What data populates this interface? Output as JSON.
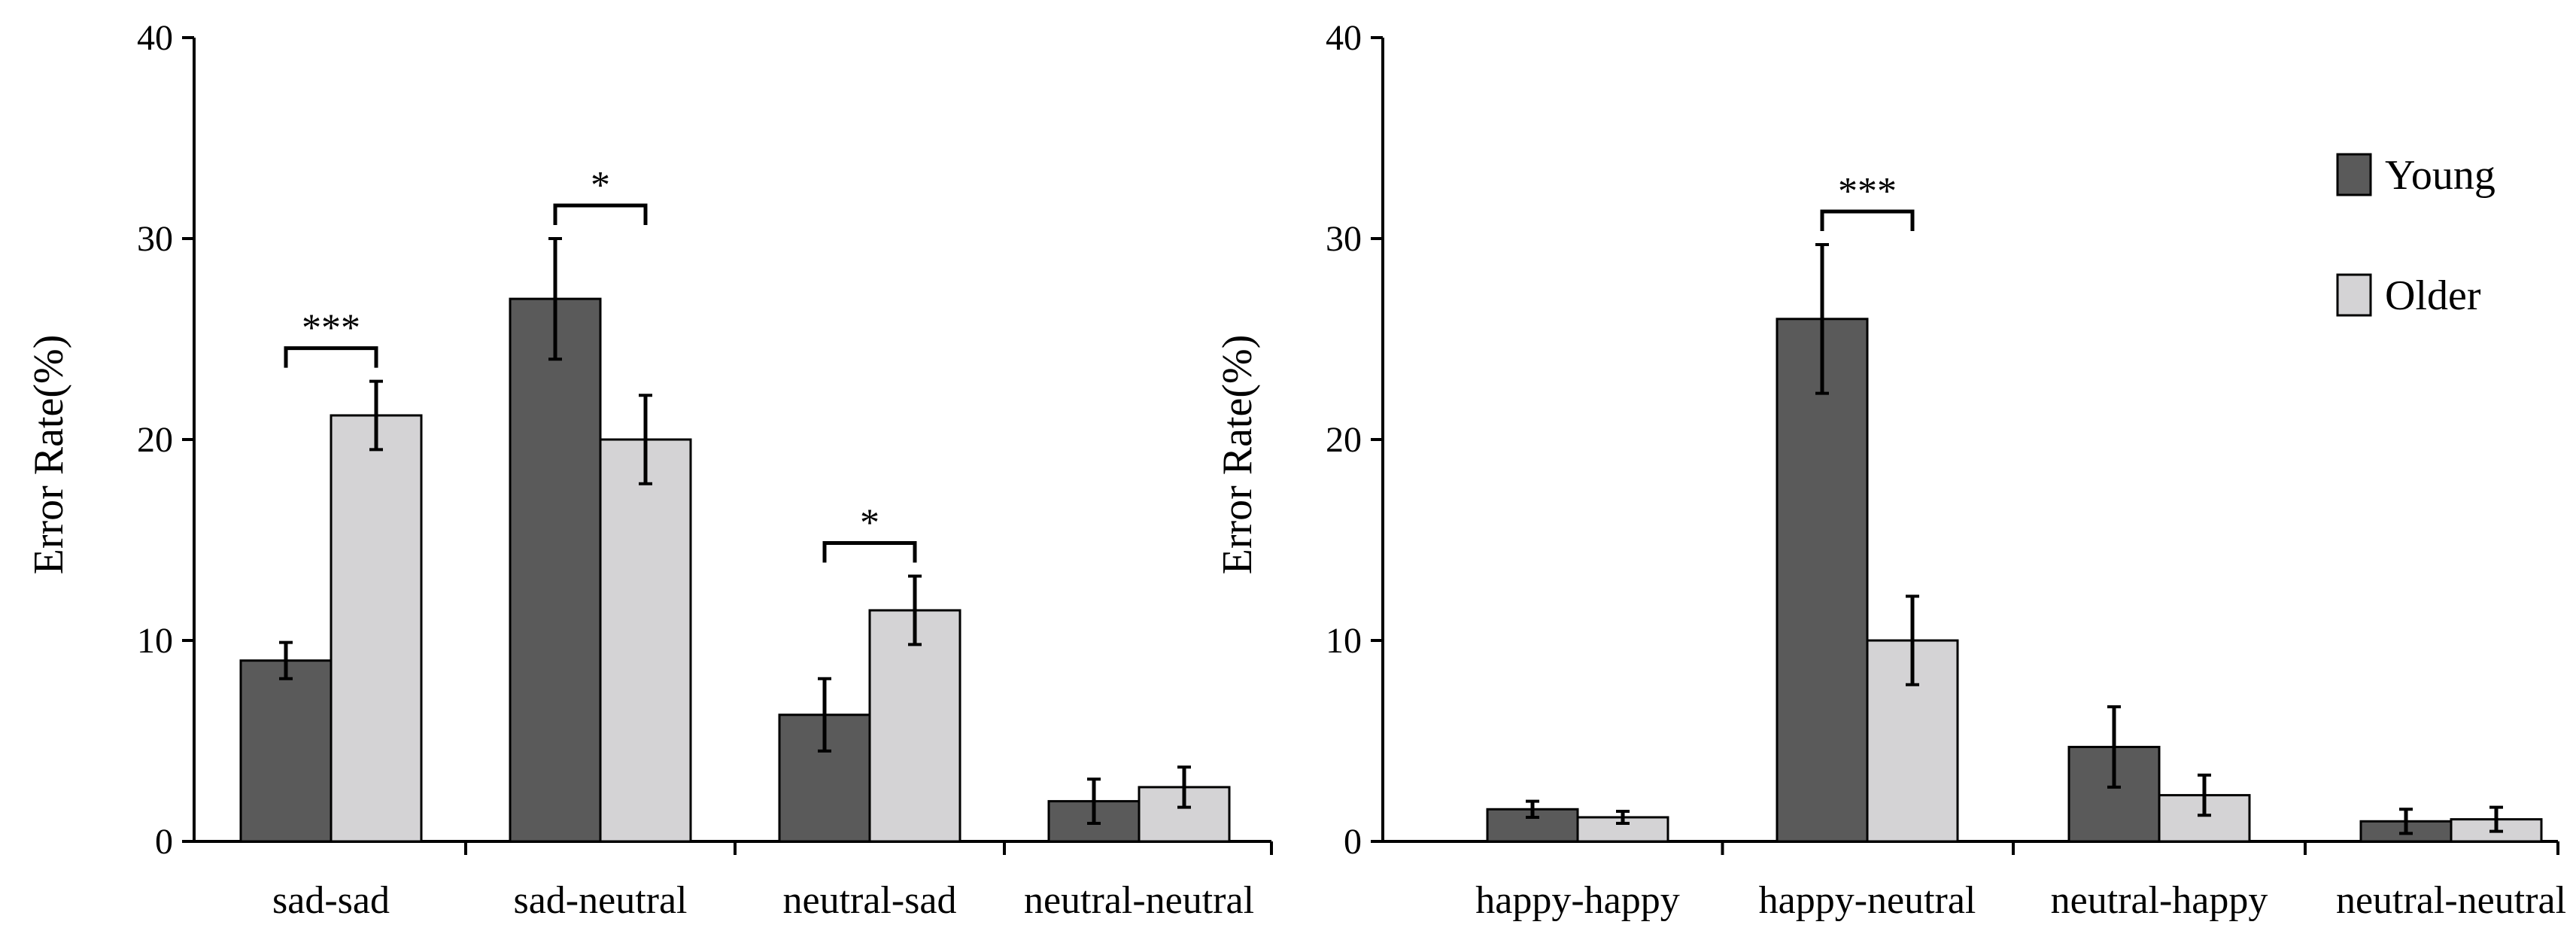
{
  "colors": {
    "young": "#5a5a5a",
    "older": "#d4d3d5",
    "stroke": "#000000"
  },
  "legend": [
    {
      "name": "Young",
      "color": "#5a5a5a"
    },
    {
      "name": "Older",
      "color": "#d4d3d5"
    }
  ],
  "chart_data": [
    {
      "type": "bar",
      "panel": "left",
      "ylabel": "Error Rate(%)",
      "xlabel": "",
      "ylim": [
        0,
        40
      ],
      "yticks": [
        0,
        10,
        20,
        30,
        40
      ],
      "categories": [
        "sad-sad",
        "sad-neutral",
        "neutral-sad",
        "neutral-neutral"
      ],
      "series": [
        {
          "name": "Young",
          "values": [
            9.0,
            27.0,
            6.3,
            2.0
          ],
          "errors": [
            0.9,
            3.0,
            1.8,
            1.1
          ]
        },
        {
          "name": "Older",
          "values": [
            21.2,
            20.0,
            11.5,
            2.7
          ],
          "errors": [
            1.7,
            2.2,
            1.7,
            1.0
          ]
        }
      ],
      "significance": [
        {
          "category_index": 0,
          "label": "***"
        },
        {
          "category_index": 1,
          "label": "*"
        },
        {
          "category_index": 2,
          "label": "*"
        }
      ]
    },
    {
      "type": "bar",
      "panel": "right",
      "ylabel": "Error Rate(%)",
      "xlabel": "",
      "ylim": [
        0,
        40
      ],
      "yticks": [
        0,
        10,
        20,
        30,
        40
      ],
      "categories": [
        "happy-happy",
        "happy-neutral",
        "neutral-happy",
        "neutral-neutral"
      ],
      "series": [
        {
          "name": "Young",
          "values": [
            1.6,
            26.0,
            4.7,
            1.0
          ],
          "errors": [
            0.4,
            3.7,
            2.0,
            0.6
          ]
        },
        {
          "name": "Older",
          "values": [
            1.2,
            10.0,
            2.3,
            1.1
          ],
          "errors": [
            0.3,
            2.2,
            1.0,
            0.6
          ]
        }
      ],
      "significance": [
        {
          "category_index": 1,
          "label": "***"
        }
      ]
    }
  ]
}
